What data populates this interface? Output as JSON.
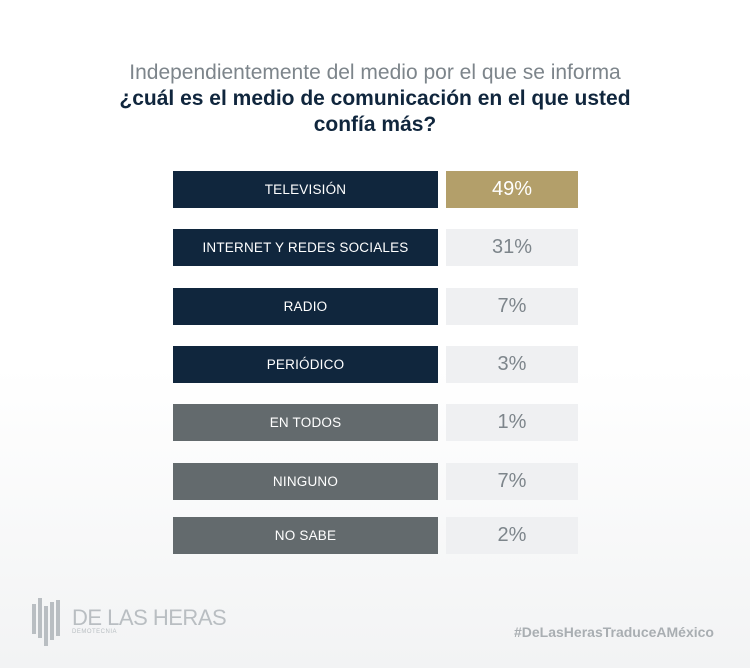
{
  "title": {
    "line1": "Independientemente del medio por el que se informa",
    "line2": "¿cuál es el medio de comunicación en el que usted confía más?"
  },
  "colors": {
    "media_label": "#10263d",
    "other_label": "#636a6d",
    "highlight_value": "#b39f6a",
    "value_bg": "#eff0f2"
  },
  "chart_data": {
    "type": "table",
    "categories": [
      "TELEVISIÓN",
      "INTERNET Y REDES SOCIALES",
      "RADIO",
      "PERIÓDICO",
      "EN TODOS",
      "NINGUNO",
      "NO SABE"
    ],
    "values": [
      49,
      31,
      7,
      3,
      1,
      7,
      2
    ],
    "labels": [
      "49%",
      "31%",
      "7%",
      "3%",
      "1%",
      "7%",
      "2%"
    ],
    "group": [
      "media",
      "media",
      "media",
      "media",
      "other",
      "other",
      "other"
    ],
    "highlight": [
      true,
      false,
      false,
      false,
      false,
      false,
      false
    ]
  },
  "footer": {
    "logo_name": "DE LAS HERAS",
    "logo_sub": "DEMOTECNIA",
    "hashtag": "#DeLasHerasTraduceAMéxico"
  }
}
